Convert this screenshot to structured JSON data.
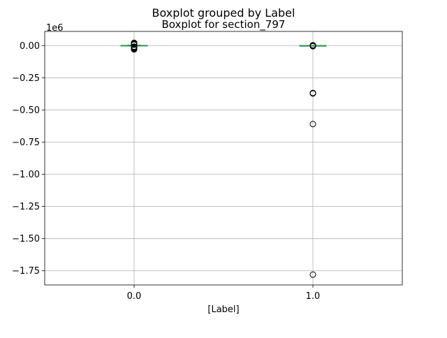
{
  "chart_data": {
    "type": "box",
    "suptitle": "Boxplot grouped by Label",
    "title": "Boxplot for section_797",
    "xlabel": "[Label]",
    "ylabel": "",
    "y_offset_label": "1e6",
    "categories": [
      "0.0",
      "1.0"
    ],
    "y_ticks": [
      0.0,
      -0.25,
      -0.5,
      -0.75,
      -1.0,
      -1.25,
      -1.5,
      -1.75
    ],
    "y_tick_labels": [
      "0.00",
      "−0.25",
      "−0.50",
      "−0.75",
      "−1.00",
      "−1.25",
      "−1.50",
      "−1.75"
    ],
    "ylim": [
      -1.86,
      0.11
    ],
    "y_unit_multiplier": 1000000,
    "grid": true,
    "boxes": [
      {
        "category": "0.0",
        "q1": -0.002,
        "median": 0.0,
        "q3": 0.002,
        "whisker_low": -0.004,
        "whisker_high": 0.004,
        "fliers": [
          0.022,
          0.018,
          0.014,
          0.01,
          0.007,
          -0.008,
          -0.012,
          -0.016,
          -0.02,
          -0.025,
          -0.03
        ]
      },
      {
        "category": "1.0",
        "q1": -0.0005,
        "median": 0.0,
        "q3": 0.0005,
        "whisker_low": -0.001,
        "whisker_high": 0.001,
        "fliers": [
          0.003,
          0.0,
          -0.005,
          -0.37,
          -0.372,
          -0.368,
          -0.61,
          -1.78
        ]
      }
    ],
    "colors": {
      "box": "#1f77b4",
      "median": "#2ca02c",
      "whisker": "#1f77b4",
      "flier": "#000000",
      "grid": "#b0b0b0"
    }
  }
}
